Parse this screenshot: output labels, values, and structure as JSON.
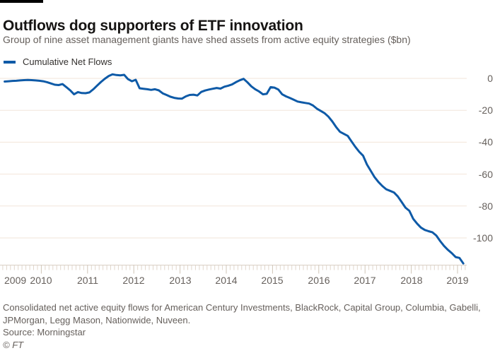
{
  "header": {
    "title": "Outflows dog supporters of ETF innovation",
    "subtitle": "Group of nine asset management giants have shed assets from active equity strategies ($bn)"
  },
  "legend": {
    "label": "Cumulative Net Flows",
    "color": "#0e5aa7"
  },
  "footer": {
    "note": "Consolidated net active equity flows for American Century Investments, BlackRock, Capital Group, Columbia, Gabelli, JPMorgan, Legg Mason, Nationwide, Nuveen.",
    "source": "Source: Morningstar",
    "credit": "© FT"
  },
  "colors": {
    "line": "#0e5aa7",
    "gridline": "#f2e5da",
    "baseline": "#d9cfc4",
    "month_tick": "#e0d6cb",
    "year_tick": "#cfc4b7",
    "axis_text": "#66605c"
  },
  "chart_data": {
    "type": "line",
    "title": "Outflows dog supporters of ETF innovation",
    "subtitle": "Group of nine asset management giants have shed assets from active equity strategies ($bn)",
    "unit": "$bn",
    "legend_position": "top-left",
    "grid": "horizontal",
    "x_ticks": [
      2009,
      2010,
      2011,
      2012,
      2013,
      2014,
      2015,
      2016,
      2017,
      2018,
      2019
    ],
    "y_ticks": [
      0,
      -20,
      -40,
      -60,
      -80,
      -100
    ],
    "ylim": [
      -120,
      5
    ],
    "xlim_months": [
      "2009-01",
      "2019-03"
    ],
    "series": [
      {
        "name": "Cumulative Net Flows",
        "color": "#0e5aa7",
        "months": [
          "2009-03",
          "2009-04",
          "2009-05",
          "2009-06",
          "2009-07",
          "2009-08",
          "2009-09",
          "2009-10",
          "2009-11",
          "2009-12",
          "2010-01",
          "2010-02",
          "2010-03",
          "2010-04",
          "2010-05",
          "2010-06",
          "2010-07",
          "2010-08",
          "2010-09",
          "2010-10",
          "2010-11",
          "2010-12",
          "2011-01",
          "2011-02",
          "2011-03",
          "2011-04",
          "2011-05",
          "2011-06",
          "2011-07",
          "2011-08",
          "2011-09",
          "2011-10",
          "2011-11",
          "2011-12",
          "2012-01",
          "2012-02",
          "2012-03",
          "2012-04",
          "2012-05",
          "2012-06",
          "2012-07",
          "2012-08",
          "2012-09",
          "2012-10",
          "2012-11",
          "2012-12",
          "2013-01",
          "2013-02",
          "2013-03",
          "2013-04",
          "2013-05",
          "2013-06",
          "2013-07",
          "2013-08",
          "2013-09",
          "2013-10",
          "2013-11",
          "2013-12",
          "2014-01",
          "2014-02",
          "2014-03",
          "2014-04",
          "2014-05",
          "2014-06",
          "2014-07",
          "2014-08",
          "2014-09",
          "2014-10",
          "2014-11",
          "2014-12",
          "2015-01",
          "2015-02",
          "2015-03",
          "2015-04",
          "2015-05",
          "2015-06",
          "2015-07",
          "2015-08",
          "2015-09",
          "2015-10",
          "2015-11",
          "2015-12",
          "2016-01",
          "2016-02",
          "2016-03",
          "2016-04",
          "2016-05",
          "2016-06",
          "2016-07",
          "2016-08",
          "2016-09",
          "2016-10",
          "2016-11",
          "2016-12",
          "2017-01",
          "2017-02",
          "2017-03",
          "2017-04",
          "2017-05",
          "2017-06",
          "2017-07",
          "2017-08",
          "2017-09",
          "2017-10",
          "2017-11",
          "2017-12",
          "2018-01",
          "2018-02",
          "2018-03",
          "2018-04",
          "2018-05",
          "2018-06",
          "2018-07",
          "2018-08",
          "2018-09",
          "2018-10",
          "2018-11",
          "2018-12",
          "2019-01",
          "2019-02"
        ],
        "values": [
          -2.0,
          -1.8,
          -1.6,
          -1.5,
          -1.3,
          -1.1,
          -1.0,
          -1.1,
          -1.3,
          -1.5,
          -1.8,
          -2.4,
          -3.2,
          -4.0,
          -4.2,
          -3.6,
          -5.5,
          -7.5,
          -10.0,
          -8.6,
          -9.2,
          -9.3,
          -8.8,
          -6.8,
          -4.5,
          -2.2,
          -0.2,
          1.5,
          2.5,
          2.1,
          1.9,
          2.2,
          -0.5,
          -1.8,
          -0.9,
          -6.2,
          -6.5,
          -6.8,
          -7.2,
          -6.8,
          -7.5,
          -9.4,
          -10.4,
          -11.5,
          -12.2,
          -12.6,
          -12.7,
          -11.3,
          -10.4,
          -10.2,
          -10.7,
          -8.5,
          -7.6,
          -7.0,
          -6.5,
          -6.0,
          -6.4,
          -5.2,
          -4.6,
          -3.8,
          -2.4,
          -1.2,
          -0.3,
          -2.5,
          -5.0,
          -6.8,
          -8.2,
          -10.0,
          -9.7,
          -5.5,
          -5.8,
          -7.0,
          -10.0,
          -11.3,
          -12.3,
          -13.4,
          -14.5,
          -15.0,
          -15.4,
          -15.8,
          -17.0,
          -19.0,
          -20.4,
          -21.8,
          -24.0,
          -27.0,
          -30.5,
          -33.5,
          -34.8,
          -36.0,
          -39.5,
          -43.0,
          -46.0,
          -48.5,
          -54.0,
          -58.0,
          -62.0,
          -65.0,
          -67.5,
          -69.5,
          -70.5,
          -71.5,
          -74.0,
          -77.5,
          -81.0,
          -83.0,
          -88.0,
          -91.0,
          -93.5,
          -95.0,
          -95.8,
          -96.5,
          -98.5,
          -102.0,
          -105.0,
          -107.5,
          -109.5,
          -112.0,
          -112.5,
          -116.0
        ]
      }
    ]
  }
}
